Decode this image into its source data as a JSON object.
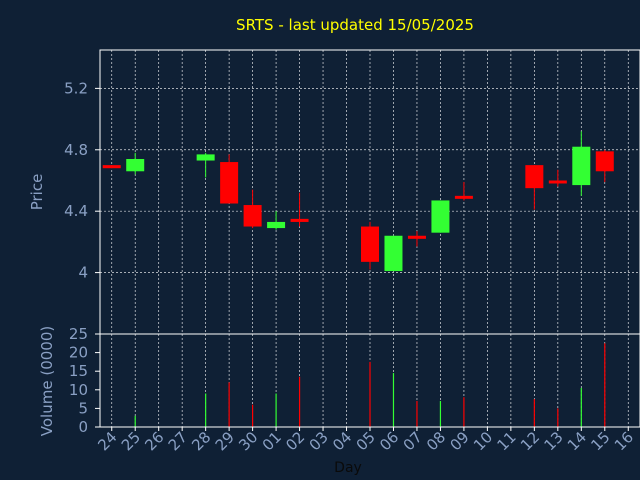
{
  "chart_data": [
    {
      "type": "candlestick",
      "title": "SRTS - last updated 15/05/2025",
      "xlabel": "Day",
      "ylabel": "Price",
      "ylim": [
        3.6,
        5.45
      ],
      "y_ticks": [
        4,
        4.4,
        4.8,
        5.2
      ],
      "y_tick_labels": [
        "4",
        "4.4",
        "4.8",
        "5.2"
      ],
      "grid": true,
      "categories": [
        "24",
        "25",
        "26",
        "27",
        "28",
        "29",
        "30",
        "01",
        "02",
        "03",
        "04",
        "05",
        "06",
        "07",
        "08",
        "09",
        "10",
        "11",
        "12",
        "13",
        "14",
        "15",
        "16"
      ],
      "candles": [
        {
          "x": "24",
          "open": 4.7,
          "close": 4.68,
          "high": 4.7,
          "low": 4.68
        },
        {
          "x": "25",
          "open": 4.66,
          "close": 4.74,
          "high": 4.78,
          "low": 4.64
        },
        {
          "x": "28",
          "open": 4.73,
          "close": 4.77,
          "high": 4.78,
          "low": 4.62
        },
        {
          "x": "29",
          "open": 4.72,
          "close": 4.45,
          "high": 4.77,
          "low": 4.45
        },
        {
          "x": "30",
          "open": 4.44,
          "close": 4.3,
          "high": 4.54,
          "low": 4.29
        },
        {
          "x": "01",
          "open": 4.29,
          "close": 4.33,
          "high": 4.4,
          "low": 4.28
        },
        {
          "x": "02",
          "open": 4.35,
          "close": 4.33,
          "high": 4.52,
          "low": 4.3
        },
        {
          "x": "05",
          "open": 4.3,
          "close": 4.07,
          "high": 4.33,
          "low": 4.02
        },
        {
          "x": "06",
          "open": 4.01,
          "close": 4.24,
          "high": 4.24,
          "low": 4.01
        },
        {
          "x": "07",
          "open": 4.24,
          "close": 4.22,
          "high": 4.27,
          "low": 4.17
        },
        {
          "x": "08",
          "open": 4.26,
          "close": 4.47,
          "high": 4.47,
          "low": 4.26
        },
        {
          "x": "09",
          "open": 4.5,
          "close": 4.49,
          "high": 4.59,
          "low": 4.47
        },
        {
          "x": "12",
          "open": 4.7,
          "close": 4.55,
          "high": 4.7,
          "low": 4.41
        },
        {
          "x": "13",
          "open": 4.6,
          "close": 4.59,
          "high": 4.67,
          "low": 4.56
        },
        {
          "x": "14",
          "open": 4.57,
          "close": 4.82,
          "high": 4.92,
          "low": 4.5
        },
        {
          "x": "15",
          "open": 4.79,
          "close": 4.66,
          "high": 4.8,
          "low": 4.59
        }
      ],
      "colors": {
        "up": "#33ff33",
        "down": "#ff0000",
        "grid": "#ffffff",
        "axis_text": "#8aa0c4",
        "title": "#ffff00",
        "background": "#0f2035"
      }
    },
    {
      "type": "bar",
      "ylabel": "Volume (0000)",
      "xlabel": "Day",
      "ylim": [
        0,
        25
      ],
      "y_ticks": [
        0,
        5,
        10,
        15,
        20,
        25
      ],
      "y_tick_labels": [
        "0",
        "5",
        "10",
        "15",
        "20",
        "25"
      ],
      "categories": [
        "24",
        "25",
        "26",
        "27",
        "28",
        "29",
        "30",
        "01",
        "02",
        "03",
        "04",
        "05",
        "06",
        "07",
        "08",
        "09",
        "10",
        "11",
        "12",
        "13",
        "14",
        "15",
        "16"
      ],
      "volumes": [
        {
          "x": "25",
          "value": 3,
          "direction": "up"
        },
        {
          "x": "28",
          "value": 9,
          "direction": "up"
        },
        {
          "x": "29",
          "value": 12,
          "direction": "down"
        },
        {
          "x": "30",
          "value": 6,
          "direction": "down"
        },
        {
          "x": "01",
          "value": 9,
          "direction": "up"
        },
        {
          "x": "02",
          "value": 13.5,
          "direction": "down"
        },
        {
          "x": "05",
          "value": 17.5,
          "direction": "down"
        },
        {
          "x": "06",
          "value": 14.5,
          "direction": "up"
        },
        {
          "x": "07",
          "value": 7,
          "direction": "down"
        },
        {
          "x": "08",
          "value": 7,
          "direction": "up"
        },
        {
          "x": "09",
          "value": 8,
          "direction": "down"
        },
        {
          "x": "12",
          "value": 7.5,
          "direction": "down"
        },
        {
          "x": "13",
          "value": 5,
          "direction": "down"
        },
        {
          "x": "14",
          "value": 10.5,
          "direction": "up"
        },
        {
          "x": "15",
          "value": 22.5,
          "direction": "down"
        }
      ]
    }
  ]
}
